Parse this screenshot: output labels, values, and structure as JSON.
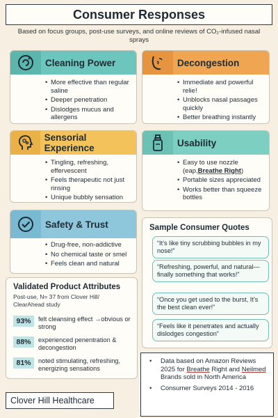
{
  "title": "Consumer Responses",
  "subtitle": "Based on focus groups, post-use surveys, and online reviews of CO₂-infused nasal sprays",
  "cards": {
    "cleaning": {
      "title": "Cleaning Power",
      "icon": "swirl-icon",
      "items": [
        "More effective than regular saline",
        "Deeper penetration",
        "Dislodges mucus and allergens"
      ]
    },
    "decongestion": {
      "title": "Decongestion",
      "icon": "face-icon",
      "items": [
        "Immediate and powerful relie!",
        "Unblocks nasal passages quickly",
        "Better breathing instantly"
      ]
    },
    "sensorial": {
      "title": "Sensorial Experience",
      "icon": "head-bubbles-icon",
      "items": [
        "Tingling, refreshing, effervescent",
        "Feels therapeutic not just rinsing",
        "Unique bubbly sensation"
      ]
    },
    "usability": {
      "title": "Usability",
      "icon": "spray-bottle-icon",
      "items": [
        "Easy to use nozzle (eap,",
        "Portable sizes appreciated",
        "Works better than squeeze bottles"
      ],
      "nozzle_example": "Breathe Right",
      "nozzle_close": ")"
    },
    "safety": {
      "title": "Safety & Trust",
      "icon": "checkmark-icon",
      "items": [
        "Drug-free, non-addictive",
        "No chemical taste or smel",
        "Feels clean and natural"
      ]
    }
  },
  "quotes": {
    "title": "Sample Consumer Quotes",
    "items": [
      "“It’s like tiny scrubbing bubbles in my nose!”",
      "“Refreshing, powerful, and natural—finally something that works!”",
      "“Once you get used to the burst, It’s the best clean ever!”",
      "“Feels like it penetrates and actually dislodges congestion”"
    ]
  },
  "attributes": {
    "title": "Validated Product Attributes",
    "note": "Post-use, N= 37 from Clover Hill/ ClearAhead study",
    "stats": [
      {
        "pct": "93%",
        "text": "felt cleansing effect →obvious or strong"
      },
      {
        "pct": "88%",
        "text": "experienced penentration & decongestion"
      },
      {
        "pct": "81%",
        "text": "noted stimulating, refreshing, energizing sensations"
      }
    ]
  },
  "sources": {
    "line1_a": "Data based on Amazon Reviews 2025 for ",
    "line1_b": "Breathe",
    "line1_c": " Right and ",
    "line1_d": "Neilmed",
    "line1_e": " Brands sold in North America",
    "line2": "Consumer Surveys 2014 - 2016"
  },
  "brand": "Clover Hill Healthcare",
  "colors": {
    "background": "#f6efe2",
    "teal": "#6dc6be",
    "orange": "#f0a552",
    "yellow": "#f3c25a",
    "aqua": "#7ccfc1",
    "blue": "#8ec7dc"
  }
}
